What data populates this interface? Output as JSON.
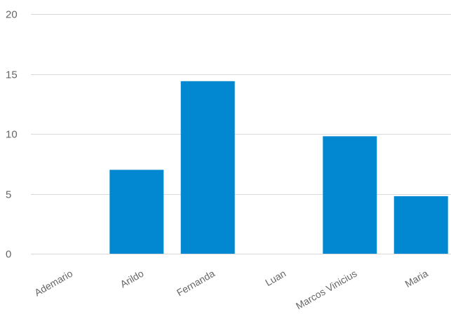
{
  "chart_data": {
    "type": "bar",
    "categories": [
      "Ademario",
      "Arildo",
      "Fernanda",
      "Luan",
      "Marcos Vinicius",
      "Maria"
    ],
    "values": [
      0,
      7,
      14.4,
      0,
      9.8,
      4.8
    ],
    "ylim": [
      0,
      20
    ],
    "yticks": [
      0,
      5,
      10,
      15,
      20
    ],
    "grid": true,
    "legend": "none",
    "bar_color": "#0288d1"
  }
}
